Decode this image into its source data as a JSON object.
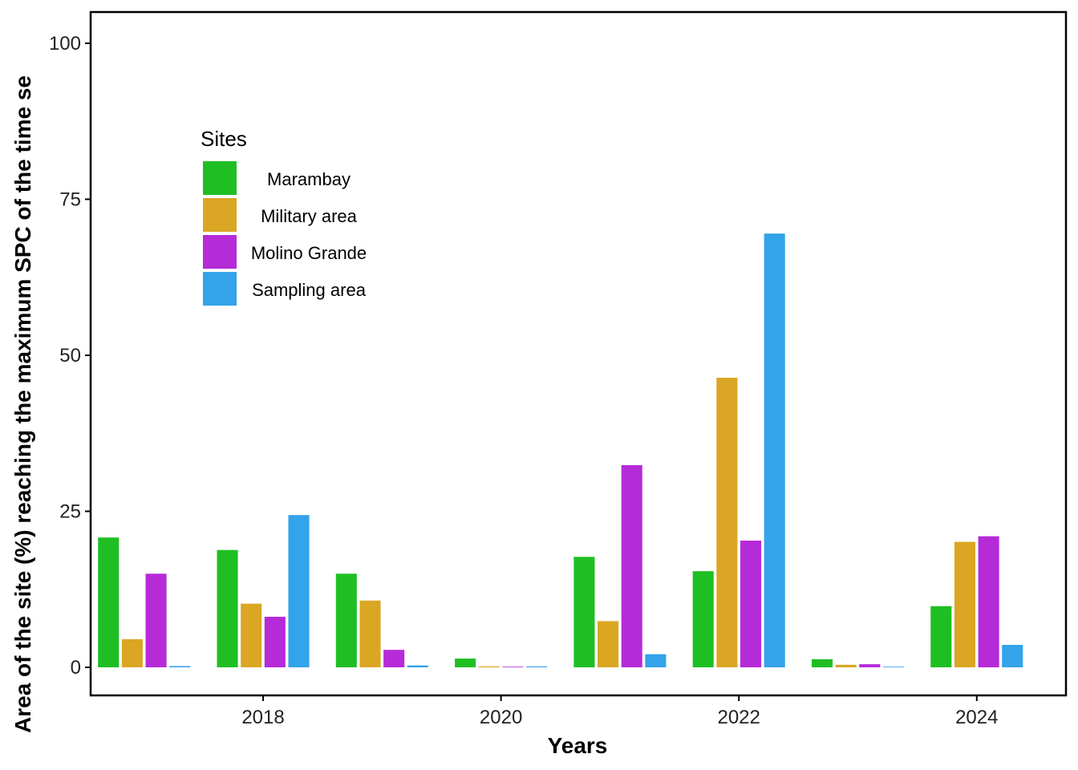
{
  "chart_data": {
    "type": "bar",
    "x": [
      2017,
      2018,
      2019,
      2020,
      2021,
      2022,
      2023,
      2024
    ],
    "xticks": [
      2018,
      2020,
      2022,
      2024
    ],
    "xlim": [
      2016.55,
      2024.75
    ],
    "xlabel": "Years",
    "ylabel": "Area of the site (%) reaching the maximum SPC of the time se",
    "ylim": [
      -4.5,
      105
    ],
    "yticks": [
      0,
      25,
      50,
      75,
      100
    ],
    "grid": false,
    "legend": {
      "title": "Sites",
      "placement": "top-left inside"
    },
    "series": [
      {
        "name": "Marambay",
        "color": "#1fbf24",
        "values": [
          20.8,
          18.8,
          15.0,
          1.4,
          17.7,
          15.4,
          1.3,
          9.8
        ]
      },
      {
        "name": "Military area",
        "color": "#daa623",
        "values": [
          4.5,
          10.2,
          10.7,
          0.15,
          7.4,
          46.4,
          0.4,
          20.1
        ]
      },
      {
        "name": "Molino Grande",
        "color": "#b52bd8",
        "values": [
          15.0,
          8.1,
          2.8,
          0.1,
          32.4,
          20.3,
          0.5,
          21.0
        ]
      },
      {
        "name": "Sampling area",
        "color": "#33a3ea",
        "values": [
          0.2,
          24.4,
          0.3,
          0.15,
          2.1,
          69.5,
          0,
          3.6
        ]
      }
    ]
  }
}
